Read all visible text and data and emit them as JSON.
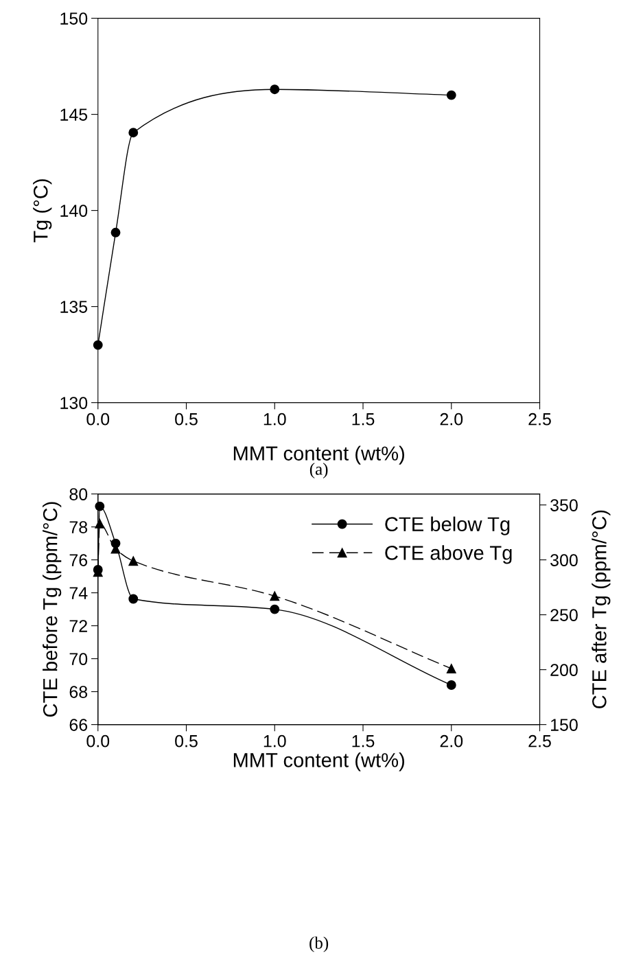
{
  "chart_data": [
    {
      "type": "line",
      "xlabel": "MMT content (wt%)",
      "ylabel": "Tg (°C)",
      "annotations": [
        "(a)"
      ],
      "x": [
        0,
        0.1,
        0.2,
        1.0,
        2.0
      ],
      "series": [
        {
          "color": "#000000",
          "marker": "circle",
          "line_style": "solid",
          "values": [
            133.0,
            138.85,
            144.05,
            146.3,
            146.0
          ]
        }
      ],
      "xlim": [
        0,
        2.5
      ],
      "xticks": [
        {
          "value": 0,
          "label": "0.0"
        },
        0.5,
        {
          "value": 1,
          "label": "1.0"
        },
        1.5,
        {
          "value": 2,
          "label": "2.0"
        },
        2.5
      ],
      "ylim": [
        130,
        150
      ],
      "yticks": [
        130,
        135,
        140,
        145,
        150
      ],
      "grid": false,
      "legend": false
    },
    {
      "type": "line",
      "xlabel": "MMT content (wt%)",
      "ylabel": "CTE before Tg (ppm/°C)",
      "y2label": "CTE after Tg (ppm/°C)",
      "annotations": [
        "(b)"
      ],
      "x": [
        0,
        0.01,
        0.1,
        0.2,
        1.0,
        2.0
      ],
      "series": [
        {
          "name": "CTE below Tg",
          "color": "#000000",
          "marker": "circle",
          "line_style": "solid",
          "values": [
            75.4,
            79.25,
            77.0,
            73.63,
            73.0,
            68.4
          ]
        },
        {
          "name": "CTE above Tg",
          "color": "#000000",
          "marker": "triangle",
          "line_style": "dashed",
          "axis": "y2",
          "values": [
            289,
            333,
            310,
            299,
            267,
            201
          ]
        }
      ],
      "xlim": [
        0,
        2.5
      ],
      "xticks": [
        {
          "value": 0,
          "label": "0.0"
        },
        0.5,
        {
          "value": 1,
          "label": "1.0"
        },
        1.5,
        {
          "value": 2,
          "label": "2.0"
        },
        2.5
      ],
      "ylim": [
        66,
        80
      ],
      "yticks": [
        66,
        68,
        70,
        72,
        74,
        76,
        78,
        80
      ],
      "y2lim": [
        150,
        360
      ],
      "y2ticks": [
        150,
        200,
        250,
        300,
        350
      ],
      "grid": false,
      "legend": "top right"
    }
  ]
}
